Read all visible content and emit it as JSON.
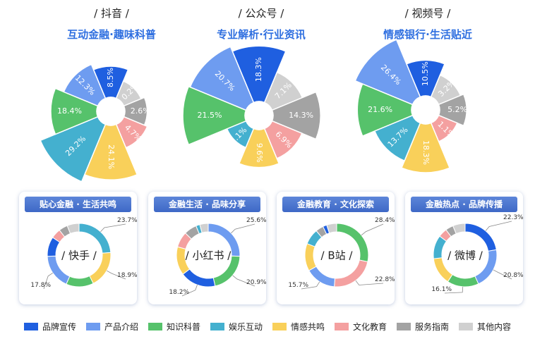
{
  "colors": {
    "brand": "#1f5fe0",
    "product": "#6e9cf0",
    "knowledge": "#56c26b",
    "entertain": "#44b0cf",
    "emotion": "#f9d05a",
    "culture": "#f4a0a0",
    "service": "#a3a3a3",
    "other": "#d0d0d0"
  },
  "legend": [
    {
      "label": "品牌宣传",
      "color": "#1f5fe0"
    },
    {
      "label": "产品介绍",
      "color": "#6e9cf0"
    },
    {
      "label": "知识科普",
      "color": "#56c26b"
    },
    {
      "label": "娱乐互动",
      "color": "#44b0cf"
    },
    {
      "label": "情感共鸣",
      "color": "#f9d05a"
    },
    {
      "label": "文化教育",
      "color": "#f4a0a0"
    },
    {
      "label": "服务指南",
      "color": "#a3a3a3"
    },
    {
      "label": "其他内容",
      "color": "#d0d0d0"
    }
  ],
  "chart_data": [
    {
      "type": "pie",
      "title": "/ 抖音 /",
      "subtitle": "互动金融·趣味科普",
      "categories": [
        "品牌宣传",
        "其他内容",
        "服务指南",
        "文化教育",
        "情感共鸣",
        "娱乐互动",
        "知识科普",
        "产品介绍"
      ],
      "values": [
        8.5,
        0.2,
        2.6,
        4.7,
        24.1,
        29.2,
        18.4,
        12.3
      ],
      "labels": [
        "8.5%",
        "0.2%",
        "2.6%",
        "4.7%",
        "24.1%",
        "29.2%",
        "18.4%",
        "12.3%"
      ]
    },
    {
      "type": "pie",
      "title": "/ 公众号 /",
      "subtitle": "专业解析·行业资讯",
      "categories": [
        "品牌宣传",
        "其他内容",
        "服务指南",
        "文化教育",
        "情感共鸣",
        "娱乐互动",
        "知识科普",
        "产品介绍"
      ],
      "values": [
        18.3,
        7.1,
        14.3,
        6.9,
        9.6,
        1.1,
        21.5,
        20.7
      ],
      "labels": [
        "18.3%",
        "7.1%",
        "14.3%",
        "6.9%",
        "9.6%",
        "1.1%",
        "21.5%",
        "20.7%"
      ]
    },
    {
      "type": "pie",
      "title": "/ 视频号 /",
      "subtitle": "情感银行·生活贴近",
      "categories": [
        "品牌宣传",
        "其他内容",
        "服务指南",
        "文化教育",
        "情感共鸣",
        "娱乐互动",
        "知识科普",
        "产品介绍"
      ],
      "values": [
        10.5,
        3.2,
        5.2,
        1.1,
        18.3,
        13.7,
        21.6,
        26.4
      ],
      "labels": [
        "10.5%",
        "3.2%",
        "5.2%",
        "1.1%",
        "18.3%",
        "13.7%",
        "21.6%",
        "26.4%"
      ]
    },
    {
      "type": "pie",
      "title": "贴心金融 · 生活共鸣",
      "center": "/ 快手 /",
      "categories": [
        "娱乐互动",
        "情感共鸣",
        "知识科普",
        "产品介绍",
        "品牌宣传",
        "文化教育",
        "服务指南",
        "其他内容"
      ],
      "values": [
        23.7,
        18.9,
        14.0,
        17.8,
        10.0,
        5.0,
        4.5,
        6.1
      ],
      "labels": [
        "23.7%",
        "18.9%",
        "",
        "17.8%",
        "",
        "",
        "",
        ""
      ]
    },
    {
      "type": "pie",
      "title": "金融生活 · 品味分享",
      "center": "/ 小红书 /",
      "categories": [
        "产品介绍",
        "知识科普",
        "品牌宣传",
        "情感共鸣",
        "文化教育",
        "服务指南",
        "娱乐互动",
        "其他内容"
      ],
      "values": [
        25.6,
        20.9,
        18.2,
        14.5,
        8.0,
        6.5,
        2.0,
        4.3
      ],
      "labels": [
        "25.6%",
        "20.9%",
        "18.2%",
        "",
        "",
        "",
        "",
        ""
      ]
    },
    {
      "type": "pie",
      "title": "金融教育 · 文化探索",
      "center": "/ B站 /",
      "categories": [
        "知识科普",
        "文化教育",
        "产品介绍",
        "情感共鸣",
        "娱乐互动",
        "服务指南",
        "品牌宣传",
        "其他内容"
      ],
      "values": [
        28.4,
        22.8,
        15.7,
        14.0,
        8.0,
        4.0,
        2.0,
        5.1
      ],
      "labels": [
        "28.4%",
        "22.8%",
        "15.7%",
        "",
        "",
        "",
        "",
        ""
      ]
    },
    {
      "type": "pie",
      "title": "金融热点 · 品牌传播",
      "center": "/ 微博 /",
      "categories": [
        "品牌宣传",
        "产品介绍",
        "知识科普",
        "情感共鸣",
        "娱乐互动",
        "文化教育",
        "服务指南",
        "其他内容"
      ],
      "values": [
        22.3,
        20.8,
        16.1,
        14.0,
        12.0,
        4.5,
        4.0,
        6.3
      ],
      "labels": [
        "22.3%",
        "20.8%",
        "16.1%",
        "",
        "",
        "",
        "",
        ""
      ]
    }
  ]
}
